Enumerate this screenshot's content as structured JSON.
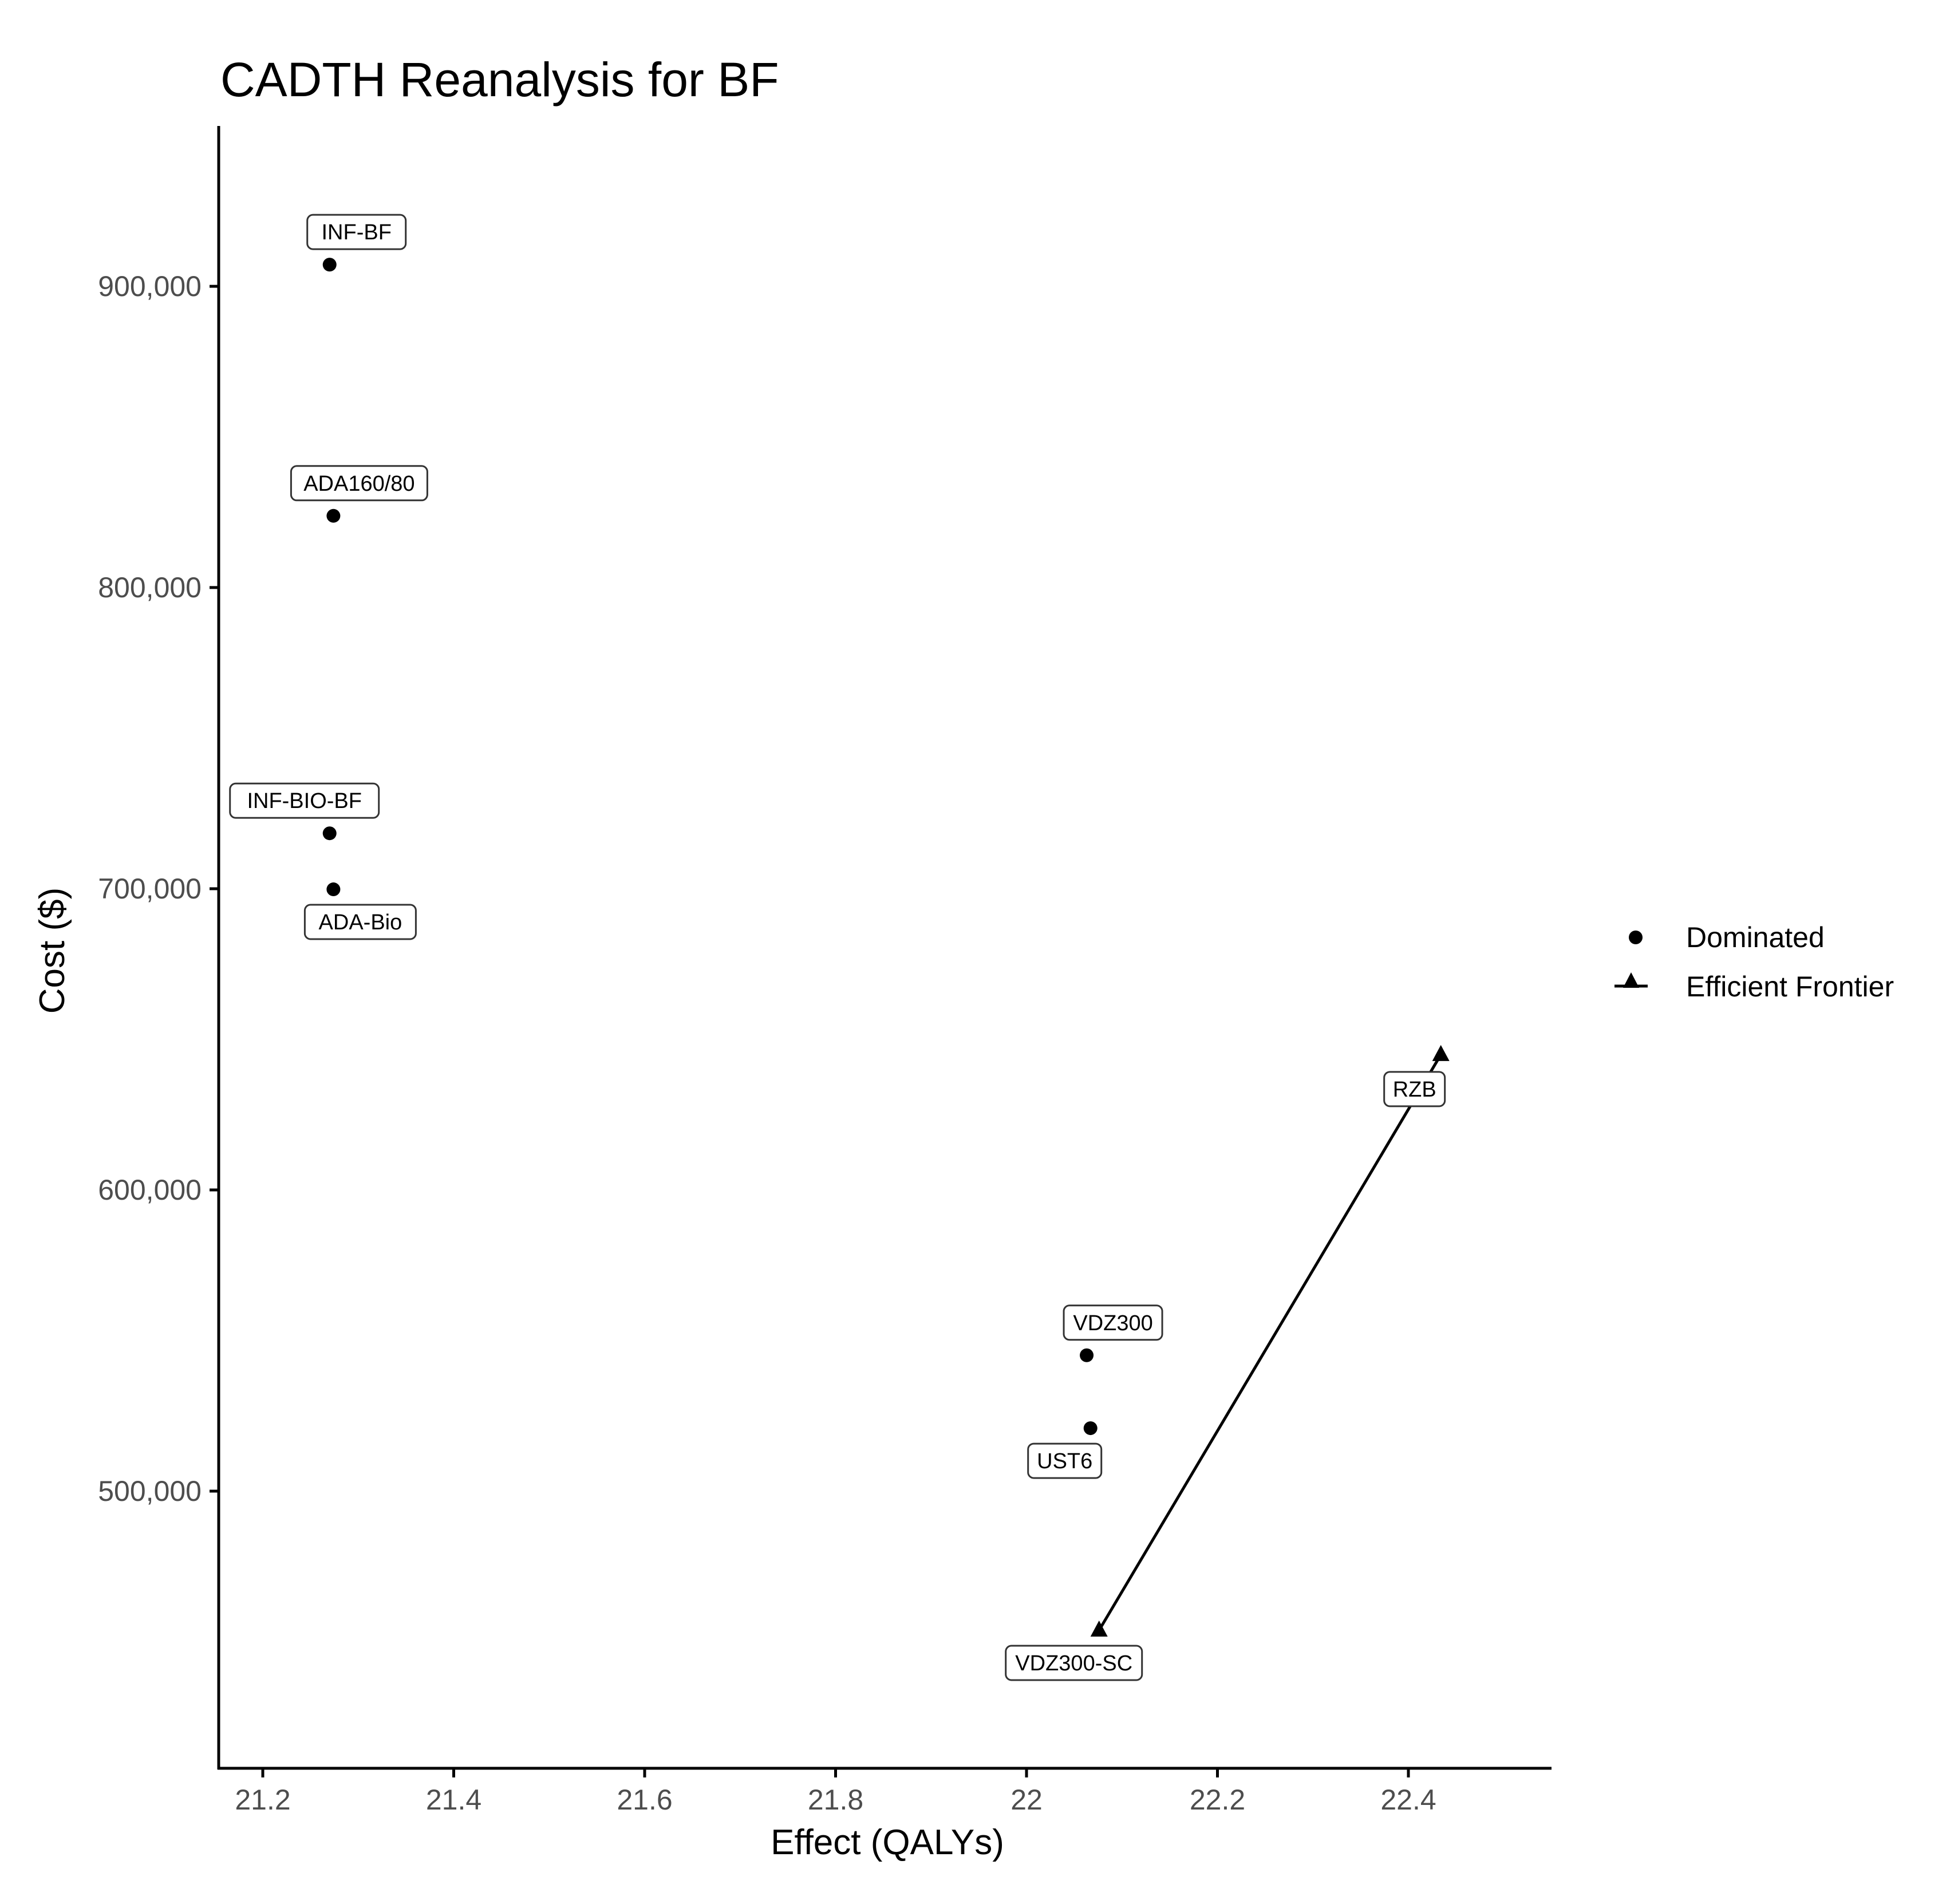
{
  "chart_data": {
    "type": "scatter",
    "title": "CADTH Reanalysis for BF",
    "xlabel": "Effect (QALYs)",
    "ylabel": "Cost ($)",
    "xlim": [
      21.15,
      22.55
    ],
    "ylim": [
      410000,
      952000
    ],
    "x_ticks": [
      21.2,
      21.4,
      21.6,
      21.8,
      22.0,
      22.2,
      22.4
    ],
    "x_tick_labels": [
      "21.2",
      "21.4",
      "21.6",
      "21.8",
      "22",
      "22.2",
      "22.4"
    ],
    "y_ticks": [
      500000,
      600000,
      700000,
      800000,
      900000
    ],
    "y_tick_labels": [
      "500,000",
      "600,000",
      "700,000",
      "800,000",
      "900,000"
    ],
    "grid": false,
    "legend_position": "right",
    "legend": [
      {
        "label": "Dominated",
        "marker": "circle",
        "line": false
      },
      {
        "label": "Efficient Frontier",
        "marker": "triangle",
        "line": true
      }
    ],
    "series": [
      {
        "name": "Dominated",
        "marker": "circle",
        "points": [
          {
            "label": "INF-BF",
            "x": 21.27,
            "y": 907200,
            "label_pos": "above"
          },
          {
            "label": "ADA160/80",
            "x": 21.274,
            "y": 823800,
            "label_pos": "above"
          },
          {
            "label": "INF-BIO-BF",
            "x": 21.27,
            "y": 718400,
            "label_pos": "above-left"
          },
          {
            "label": "ADA-Bio",
            "x": 21.274,
            "y": 699800,
            "label_pos": "below"
          },
          {
            "label": "VDZ300",
            "x": 22.063,
            "y": 545100,
            "label_pos": "above"
          },
          {
            "label": "UST6",
            "x": 22.067,
            "y": 520900,
            "label_pos": "below-left"
          }
        ]
      },
      {
        "name": "Efficient Frontier",
        "marker": "triangle",
        "connected": true,
        "points": [
          {
            "label": "VDZ300-SC",
            "x": 22.076,
            "y": 453800,
            "label_pos": "below-left"
          },
          {
            "label": "RZB",
            "x": 22.434,
            "y": 644900,
            "label_pos": "below-left"
          }
        ]
      }
    ]
  },
  "colors": {
    "points": "#000000",
    "axis": "#000000",
    "tick_labels": "#4d4d4d",
    "label_border": "#333333",
    "background": "#ffffff"
  }
}
